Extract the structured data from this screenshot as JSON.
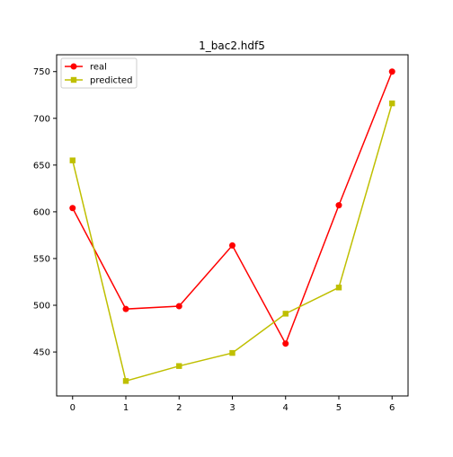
{
  "chart_data": {
    "type": "line",
    "title": "1_bac2.hdf5",
    "xlabel": "",
    "ylabel": "",
    "x": [
      0,
      1,
      2,
      3,
      4,
      5,
      6
    ],
    "xlim": [
      -0.3,
      6.3
    ],
    "ylim": [
      403,
      768
    ],
    "xticks": [
      "0",
      "1",
      "2",
      "3",
      "4",
      "5",
      "6"
    ],
    "yticks": [
      450,
      500,
      550,
      600,
      650,
      700,
      750
    ],
    "grid": false,
    "legend_position": "top-left",
    "series": [
      {
        "name": "real",
        "color": "#ff0000",
        "marker": "circle",
        "values": [
          604,
          496,
          499,
          564,
          459,
          607,
          750
        ]
      },
      {
        "name": "predicted",
        "color": "#bfbf00",
        "marker": "square",
        "values": [
          655,
          419,
          435,
          449,
          491,
          519,
          716
        ]
      }
    ]
  }
}
